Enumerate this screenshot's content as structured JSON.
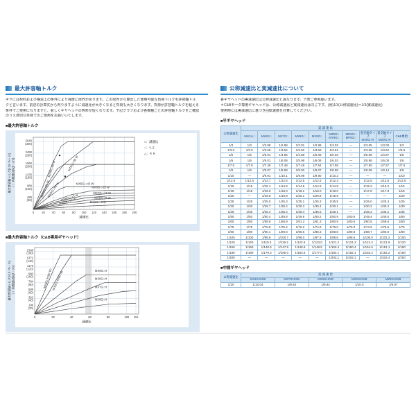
{
  "colors": {
    "accent_blue": "#2f8bc9",
    "header_text": "#1b5a9e",
    "panel_bg": "#dce9f5",
    "grid": "#b9cfe2",
    "series_line": "#4a4a4a",
    "table_header_bg": "#cfe3f4",
    "table_border": "#8fb7d6"
  },
  "left": {
    "section_title": "最大許容軸トルク",
    "intro_lines": [
      "ギヤには材料および構造上の条件により強度に限界があります。この限界から算出した使用可能な負荷トルクを許容軸トル",
      "クと言います。前述の計算式から判りますように減速比が大きくなると負荷も大きくなります。負荷が許容軸トルクを超える",
      "条件でご使用になりますと、著しくギヤヘッドの寿命が短くなります。下記グラフおよび各機種ごとの許容軸トルクをご確認",
      "のうえ適切な負荷でのご使用をお願いいたします。"
    ],
    "chart1_title": "■最大許容軸トルク",
    "chart2_title": "■最大許容軸トルク（C&B専用ギヤヘッド）"
  },
  "right": {
    "section_title": "公称減速比と実減速比について",
    "intro_lines": [
      "各ギヤヘッドの実減速比は公称減速比と異なります。下表ご参照願います。",
      "＊C&Bモータ専用ギヤヘッドは、公称減速比と実減速比は同じです。(例)1/3(公称減速比)＝1/3(実減速比)",
      "使用時には実減速比に基づき回転速度を計算してください。"
    ],
    "flat_table": {
      "title": "■平ギヤヘッド",
      "nominal_header": "公称減速比",
      "span_header": "実 減 速 比",
      "columns": [
        "M4GA□",
        "MX6G□",
        "MX7G□",
        "MX8G□",
        "MX9G□",
        "MZ9G□\nMY9G□",
        "MR9G□\nMP9G□",
        "直交軸タイプ\nMX9G□R",
        "直交軸タイプ\nMZ9G□R",
        "C&B専用"
      ],
      "rows": [
        {
          "nominal": "1/3",
          "values": [
            "1/3",
            "1/2.98",
            "1/2.99",
            "1/3.01",
            "1/2.98",
            "1/3.02",
            "—",
            "1/3.05",
            "1/3.00",
            "1/3"
          ]
        },
        {
          "nominal": "1/3.6",
          "values": [
            "1/3.6",
            "1/3.58",
            "1/3.54",
            "1/3.60",
            "1/3.58",
            "1/3.61",
            "—",
            "1/3.65",
            "1/3.62",
            "1/3.6"
          ]
        },
        {
          "nominal": "1/5",
          "values": [
            "1/5",
            "1/5.04",
            "1/4.95",
            "1/4.98",
            "1/5.08",
            "1/5.03",
            "—",
            "1/5.08",
            "1/4.97",
            "1/5"
          ]
        },
        {
          "nominal": "1/6",
          "values": [
            "1/6",
            "1/6.01",
            "1/6.08",
            "1/5.98",
            "1/6.08",
            "1/6.03",
            "—",
            "1/5.98",
            "1/6.00",
            "1/6"
          ]
        },
        {
          "nominal": "1/7.5",
          "values": [
            "1/7.5",
            "1/7.49",
            "1/7.48",
            "1/7.48",
            "1/7.54",
            "1/7.58",
            "—",
            "1/7.50",
            "1/7.57",
            "1/7.5"
          ]
        },
        {
          "nominal": "1/9",
          "values": [
            "1/9",
            "1/9.07",
            "1/8.98",
            "1/9.00",
            "1/9.07",
            "1/8.98",
            "—",
            "1/9.08",
            "1/9.14",
            "1/9"
          ]
        },
        {
          "nominal": "1/10",
          "values": [
            "—",
            "1/9.91",
            "1/10.1",
            "1/9.98",
            "1/9.90",
            "1/10.2",
            "—",
            "—",
            "—",
            "1/10"
          ]
        },
        {
          "nominal": "1/12.5",
          "values": [
            "1/12.5",
            "1/12.7",
            "1/12.6",
            "1/12.5",
            "1/12.5",
            "1/12.3",
            "—",
            "1/12.5",
            "1/12.6",
            "1/12.5"
          ]
        },
        {
          "nominal": "1/15",
          "values": [
            "1/15",
            "1/15.1",
            "1/14.9",
            "1/14.9",
            "1/14.9",
            "1/14.9",
            "—",
            "1/15.2",
            "1/15.2",
            "1/15"
          ]
        },
        {
          "nominal": "1/18",
          "values": [
            "1/18",
            "1/18.0",
            "1/18.0",
            "1/18.1",
            "1/18.0",
            "1/18.0",
            "—",
            "1/17.8",
            "1/17.8",
            "1/18"
          ]
        },
        {
          "nominal": "1/20",
          "values": [
            "—",
            "1/19.8",
            "1/19.8",
            "1/20.1",
            "1/20.8",
            "1/19.9",
            "—",
            "—",
            "—",
            "1/20"
          ]
        },
        {
          "nominal": "1/25",
          "values": [
            "1/25",
            "1/25.0",
            "1/25.3",
            "1/25.1",
            "1/25.3",
            "1/25.5",
            "—",
            "1/25.0",
            "1/25.3",
            "1/25"
          ]
        },
        {
          "nominal": "1/30",
          "values": [
            "1/30",
            "1/29.7",
            "1/30.2",
            "1/30.3",
            "1/30.4",
            "1/30.1",
            "—",
            "1/30.2",
            "1/30.4",
            "1/30"
          ]
        },
        {
          "nominal": "1/36",
          "values": [
            "1/36",
            "1/36.4",
            "1/36.4",
            "1/36.4",
            "1/36.5",
            "1/36.1",
            "—",
            "1/36.3",
            "1/36.2",
            "1/36"
          ]
        },
        {
          "nominal": "1/50",
          "values": [
            "1/50",
            "1/50.4",
            "1/49.8",
            "1/49.8",
            "1/50.2",
            "1/50.9",
            "1/50.9",
            "1/49.4",
            "1/49.6",
            "1/50"
          ]
        },
        {
          "nominal": "1/60",
          "values": [
            "1/60",
            "1/59.6",
            "1/58.9",
            "1/61.2",
            "1/61.3",
            "1/60.5",
            "1/60.5",
            "1/60.5",
            "1/59.6",
            "1/60"
          ]
        },
        {
          "nominal": "1/75",
          "values": [
            "1/75",
            "1/75.8",
            "1/75.4",
            "1/76.2",
            "1/74.8",
            "1/76.0",
            "1/76.0",
            "1/74.5",
            "1/75.6",
            "1/75"
          ]
        },
        {
          "nominal": "1/90",
          "values": [
            "1/90",
            "1/90.1",
            "1/90.8",
            "1/90.5",
            "1/88.3",
            "1/89.8",
            "1/89.8",
            "1/88.7",
            "1/90.0",
            "1/90"
          ]
        },
        {
          "nominal": "1/100",
          "values": [
            "1/100",
            "1/98.9",
            "1/100.7",
            "1/98.0",
            "1/97.8",
            "1/98.6",
            "1/98.6",
            "1/100.0",
            "1/101.2",
            "1/100"
          ]
        },
        {
          "nominal": "1/120",
          "values": [
            "1/120",
            "1/119.3",
            "1/119.2",
            "1/122.5",
            "1/123.0",
            "1/121.2",
            "1/121.2",
            "1/121.2",
            "1/121.9",
            "1/120"
          ]
        },
        {
          "nominal": "1/150",
          "values": [
            "1/150",
            "1/148.9",
            "1/147.6",
            "1/148.9",
            "1/148.5",
            "1/150.4",
            "1/150.4",
            "1/154.6",
            "1/151.1",
            "1/150"
          ]
        },
        {
          "nominal": "1/180",
          "values": [
            "1/180",
            "1/179.3",
            "1/180.0",
            "1/183.5",
            "1/177.0",
            "1/182.1",
            "1/182.1",
            "1/182.2",
            "1/182.2",
            "1/180"
          ]
        },
        {
          "nominal": "1/200",
          "values": [
            "—",
            "—",
            "—",
            "—",
            "—",
            "1/202.1",
            "1/202.1",
            "—",
            "1/202.4",
            "1/200"
          ]
        }
      ]
    },
    "mid_table": {
      "title": "■中間ギヤヘッド",
      "nominal_header": "公称減速比",
      "span_header": "実 減 速 比",
      "columns": [
        "MX6G10XB",
        "MX7G10XB",
        "MX8G10XB",
        "MX9G10XB",
        "MZ9G10XB"
      ],
      "rows": [
        {
          "nominal": "1/10",
          "values": [
            "1/10.04",
            "1/9.93",
            "1/9.94",
            "1/10.0",
            "1/9.97"
          ]
        }
      ]
    }
  },
  "chart_data": [
    {
      "type": "line",
      "title": "最大許容軸トルク",
      "xlabel": "減速比",
      "ylabel": "最大許容軸トルク[×10⁻³N・m]",
      "ylabel2": "（ ）内数値は[kgf・cm]",
      "xlim": [
        0,
        200
      ],
      "ylim": [
        0,
        3140
      ],
      "xticks": [
        0,
        20,
        40,
        60,
        80,
        100,
        120,
        140,
        160,
        180,
        200
      ],
      "yticks": [
        {
          "value": 490,
          "label": "490",
          "sub": "(50)"
        },
        {
          "value": 980,
          "label": "980",
          "sub": "(100)"
        },
        {
          "value": 1470,
          "label": "1470",
          "sub": "(150)"
        },
        {
          "value": 1960,
          "label": "1960",
          "sub": "(200)"
        },
        {
          "value": 2450,
          "label": "2450",
          "sub": "(250)"
        },
        {
          "value": 2940,
          "label": "2940",
          "sub": "(300)"
        }
      ],
      "grid": true,
      "legend": [
        "□：減速比",
        "○：Y, Z",
        "△：P, R"
      ],
      "legend_position": "right-top",
      "series": [
        {
          "name": "MZ9G□-90 W",
          "points": [
            [
              0,
              0
            ],
            [
              20,
              1050
            ],
            [
              40,
              2100
            ],
            [
              55,
              2750
            ],
            [
              67,
              2940
            ],
            [
              135,
              2940
            ]
          ],
          "label": {
            "x": 38,
            "y": 1750,
            "rot": -72
          },
          "marker": [
            52,
            2350
          ]
        },
        {
          "name": "MZ9G□-60 W",
          "points": [
            [
              0,
              0
            ],
            [
              30,
              1050
            ],
            [
              60,
              1950
            ],
            [
              90,
              2480
            ],
            [
              118,
              2940
            ],
            [
              200,
              2940
            ]
          ],
          "label": {
            "x": 80,
            "y": 1980,
            "rot": -60
          },
          "marker": [
            63,
            1430
          ]
        },
        {
          "name": "MX9G□-90 W",
          "points": [
            [
              0,
              0
            ],
            [
              25,
              1000
            ],
            [
              48,
              1780
            ],
            [
              62,
              1960
            ],
            [
              200,
              1960
            ]
          ],
          "label": {
            "x": 25,
            "y": 880,
            "rot": -68
          }
        },
        {
          "name": "MX9G□-60 W",
          "points": [
            [
              0,
              0
            ],
            [
              35,
              900
            ],
            [
              75,
              1550
            ],
            [
              105,
              1850
            ],
            [
              125,
              1960
            ]
          ],
          "label": {
            "x": 41,
            "y": 830,
            "rot": -55
          }
        },
        {
          "name": "MX9G□-40 W",
          "points": [
            [
              0,
              0
            ],
            [
              25,
              450
            ],
            [
              52,
              880
            ],
            [
              64,
              980
            ],
            [
              200,
              980
            ]
          ],
          "label": {
            "x": 102,
            "y": 1075,
            "rot": 0
          }
        },
        {
          "name": "MX8G□-25 W",
          "points": [
            [
              0,
              0
            ],
            [
              35,
              330
            ],
            [
              75,
              640
            ],
            [
              115,
              810
            ],
            [
              200,
              845
            ]
          ],
          "label": {
            "x": 133,
            "y": 915,
            "rot": 0
          }
        },
        {
          "name": "MX8G□-15 W",
          "points": [
            [
              0,
              0
            ],
            [
              45,
              330
            ],
            [
              95,
              580
            ],
            [
              150,
              690
            ],
            [
              200,
              720
            ]
          ],
          "label": {
            "x": 72,
            "y": 470,
            "rot": -18
          }
        },
        {
          "name": "MX7G□-15 W",
          "points": [
            [
              0,
              0
            ],
            [
              45,
              270
            ],
            [
              105,
              510
            ],
            [
              150,
              590
            ],
            [
              200,
              610
            ]
          ],
          "label": {
            "x": 136,
            "y": 665,
            "rot": 0
          }
        },
        {
          "name": "MX7G□-10 W",
          "points": [
            [
              0,
              0
            ],
            [
              55,
              240
            ],
            [
              115,
              420
            ],
            [
              165,
              490
            ],
            [
              200,
              505
            ]
          ],
          "label": {
            "x": 68,
            "y": 315,
            "rot": -14
          }
        },
        {
          "name": "MX6G□-6 W",
          "points": [
            [
              0,
              0
            ],
            [
              60,
              190
            ],
            [
              130,
              330
            ],
            [
              200,
              390
            ]
          ],
          "label": {
            "x": 137,
            "y": 450,
            "rot": 0
          }
        },
        {
          "name": "MX6G□-3 W",
          "points": [
            [
              0,
              0
            ],
            [
              80,
              120
            ],
            [
              150,
              185
            ],
            [
              200,
              215
            ]
          ],
          "label": {
            "x": 128,
            "y": 265,
            "rot": 0
          }
        }
      ]
    },
    {
      "type": "line",
      "title": "最大許容軸トルク（C&B専用ギヤヘッド）",
      "xlabel": "減速比",
      "ylabel": "最大許容軸トルク[×10⁻³N・m]",
      "ylabel2": "（ ）内数値は[kgf・cm]",
      "xlim": [
        0,
        113
      ],
      "ylim": [
        0,
        1660
      ],
      "xticks": [
        0,
        20,
        40,
        60,
        80,
        100,
        110
      ],
      "yticks": [
        {
          "value": 196,
          "label": "196",
          "sub": "(20)"
        },
        {
          "value": 392,
          "label": "392",
          "sub": "(40)"
        },
        {
          "value": 588,
          "label": "588",
          "sub": "(60)"
        },
        {
          "value": 784,
          "label": "784",
          "sub": "(80)"
        },
        {
          "value": 980,
          "label": "980",
          "sub": "(100)"
        },
        {
          "value": 1176,
          "label": "1176",
          "sub": "(120)"
        },
        {
          "value": 1372,
          "label": "1372",
          "sub": "(140)"
        },
        {
          "value": 1568,
          "label": "1568",
          "sub": "(160)"
        }
      ],
      "grid": true,
      "band": {
        "x1": 55,
        "x2": 62
      },
      "series": [
        {
          "name": "MX9G□H(90 W)",
          "points": [
            [
              0,
              0
            ],
            [
              10,
              520
            ],
            [
              20,
              1080
            ],
            [
              28,
              1470
            ],
            [
              110,
              1470
            ]
          ],
          "label": {
            "x": 15,
            "y": 880,
            "rot": -72
          }
        },
        {
          "name": "MX9G□H(60 W)",
          "points": [
            [
              0,
              0
            ],
            [
              15,
              520
            ],
            [
              30,
              1120
            ],
            [
              40,
              1470
            ]
          ],
          "label": {
            "x": 26,
            "y": 830,
            "rot": -66
          }
        },
        {
          "name": "MX9G□H",
          "points": [
            [
              0,
              0
            ],
            [
              20,
              360
            ],
            [
              45,
              820
            ],
            [
              56,
              980
            ],
            [
              110,
              980
            ]
          ],
          "label": {
            "x": 72,
            "y": 1055,
            "rot": 0
          }
        },
        {
          "name": "MX8G□H",
          "points": [
            [
              0,
              0
            ],
            [
              25,
              290
            ],
            [
              60,
              640
            ],
            [
              76,
              784
            ],
            [
              110,
              784
            ]
          ],
          "label": {
            "x": 72,
            "y": 855,
            "rot": 0
          }
        },
        {
          "name": "MX7G□H",
          "points": [
            [
              0,
              0
            ],
            [
              30,
              210
            ],
            [
              70,
              460
            ],
            [
              95,
              560
            ],
            [
              110,
              585
            ]
          ],
          "label": {
            "x": 72,
            "y": 650,
            "rot": 0
          }
        },
        {
          "name": "MX6G□H",
          "points": [
            [
              0,
              0
            ],
            [
              40,
              135
            ],
            [
              80,
              245
            ],
            [
              110,
              270
            ]
          ],
          "label": {
            "x": 72,
            "y": 340,
            "rot": 0
          }
        }
      ]
    }
  ]
}
